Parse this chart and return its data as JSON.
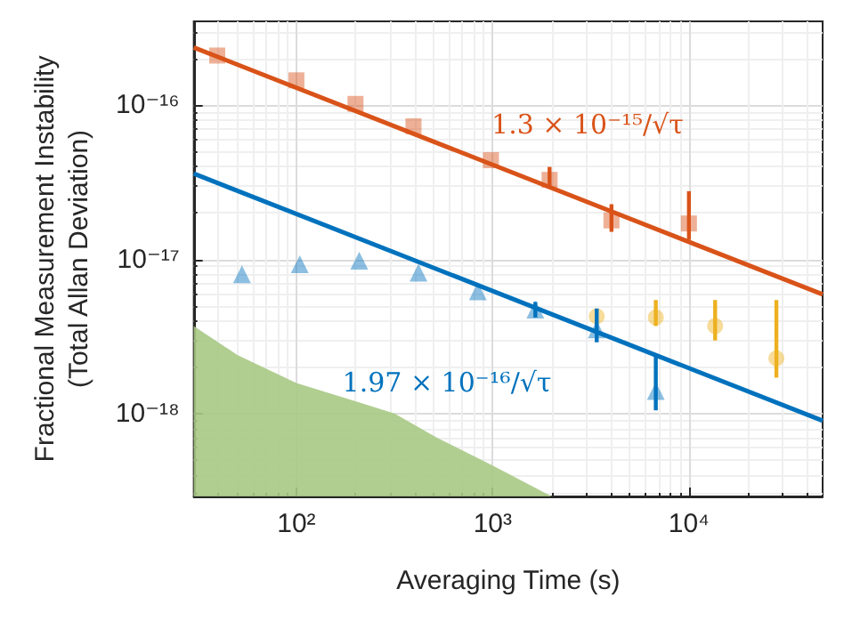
{
  "chart_data": {
    "type": "scatter",
    "xlabel": "Averaging Time (s)",
    "ylabel": "Fractional Measurement Instability\n(Total Allan Deviation)",
    "log": "xy",
    "grid": true,
    "xlim": [
      30,
      48000
    ],
    "ylim": [
      2.9e-19,
      3.5e-16
    ],
    "xticks": [
      {
        "value": 100,
        "label": "10²"
      },
      {
        "value": 1000,
        "label": "10³"
      },
      {
        "value": 10000,
        "label": "10⁴"
      }
    ],
    "yticks": [
      {
        "value": 1e-18,
        "label": "10⁻¹⁸"
      },
      {
        "value": 1e-17,
        "label": "10⁻¹⁷"
      },
      {
        "value": 1e-16,
        "label": "10⁻¹⁶"
      }
    ],
    "series": [
      {
        "type": "area",
        "color": "#a9c985",
        "x": [
          30,
          50,
          100,
          200,
          316,
          518,
          1000,
          2000
        ],
        "values": [
          3.7e-18,
          2.4e-18,
          1.58e-18,
          1.2e-18,
          1e-18,
          7e-19,
          4.6e-19,
          2.9e-19
        ]
      },
      {
        "type": "line",
        "color": "#d95319",
        "marker": "none",
        "x": [
          30,
          48000
        ],
        "values": [
          2.37e-16,
          5.93e-18
        ]
      },
      {
        "type": "line",
        "color": "#0072bd",
        "marker": "none",
        "x": [
          30,
          48000
        ],
        "values": [
          3.6e-17,
          8.99e-19
        ]
      },
      {
        "color": "#d95319",
        "marker": "square",
        "x": [
          39.5,
          100,
          200,
          395,
          980,
          1950,
          4030,
          10000
        ],
        "values": [
          2.1e-16,
          1.45e-16,
          1.02e-16,
          7.3e-17,
          4.4e-17,
          3.28e-17,
          1.79e-17,
          1.71e-17
        ],
        "errors": [
          null,
          null,
          null,
          null,
          null,
          [
            2.98e-17,
            3.98e-17
          ],
          [
            1.51e-17,
            2.28e-17
          ],
          [
            1.34e-17,
            2.77e-17
          ]
        ]
      },
      {
        "color": "#0072bd",
        "marker": "triangle",
        "x": [
          52.8,
          104,
          209,
          419,
          840,
          1650,
          3390,
          6780
        ],
        "values": [
          8e-18,
          9.3e-18,
          9.8e-18,
          8.2e-18,
          6.2e-18,
          4.72e-18,
          3.52e-18,
          1.4e-18
        ],
        "errors": [
          null,
          null,
          null,
          null,
          null,
          [
            4.2e-18,
            5.3e-18
          ],
          [
            2.9e-18,
            4.8e-18
          ],
          [
            1.05e-18,
            2.34e-18
          ]
        ]
      },
      {
        "color": "#edb120",
        "marker": "circle",
        "x": [
          3390,
          6780,
          13600,
          27900
        ],
        "values": [
          4.28e-18,
          4.2e-18,
          3.7e-18,
          2.28e-18
        ],
        "errors": [
          null,
          [
            3.7e-18,
            5.45e-18
          ],
          [
            2.98e-18,
            5.45e-18
          ],
          [
            1.71e-18,
            5.45e-18
          ]
        ]
      }
    ],
    "annotations": [
      "1.3 × 10⁻¹⁵/√τ",
      "1.97 × 10⁻¹⁶/√τ"
    ]
  }
}
